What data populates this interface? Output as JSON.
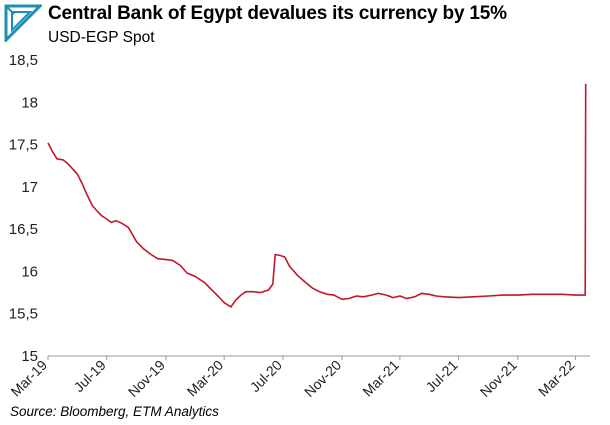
{
  "header": {
    "title": "Central Bank of Egypt devalues its currency by 15%",
    "subtitle": "USD-EGP Spot",
    "logo_icon": "triangle-logo-icon"
  },
  "source": "Source: Bloomberg, ETM Analytics",
  "chart_data": {
    "type": "line",
    "title": "Central Bank of Egypt devalues its currency by 15%",
    "subtitle": "USD-EGP Spot",
    "xlabel": "",
    "ylabel": "",
    "ylim": [
      15,
      18.5
    ],
    "yticks": [
      15,
      15.5,
      16,
      16.5,
      17,
      17.5,
      18,
      18.5
    ],
    "ytick_labels": [
      "15",
      "15,5",
      "16",
      "16,5",
      "17",
      "17,5",
      "18",
      "18,5"
    ],
    "xlim": [
      "2019-03-01",
      "2022-03-31"
    ],
    "xticks": [
      "2019-03-01",
      "2019-07-01",
      "2019-11-01",
      "2020-03-01",
      "2020-07-01",
      "2020-11-01",
      "2021-03-01",
      "2021-07-01",
      "2021-11-01",
      "2022-03-01"
    ],
    "xtick_labels": [
      "Mar-19",
      "Jul-19",
      "Nov-19",
      "Mar-20",
      "Jul-20",
      "Nov-20",
      "Mar-21",
      "Jul-21",
      "Nov-21",
      "Mar-22"
    ],
    "grid": false,
    "line_color": "#c0182a",
    "series": [
      {
        "x": [
          "2019-03-01",
          "2019-03-10",
          "2019-03-20",
          "2019-04-01",
          "2019-04-10",
          "2019-04-20",
          "2019-05-01",
          "2019-05-10",
          "2019-05-20",
          "2019-06-01",
          "2019-06-10",
          "2019-06-20",
          "2019-07-01",
          "2019-07-10",
          "2019-07-20",
          "2019-08-01",
          "2019-08-15",
          "2019-09-01",
          "2019-09-15",
          "2019-10-01",
          "2019-10-15",
          "2019-11-01",
          "2019-11-15",
          "2019-12-01",
          "2019-12-15",
          "2020-01-01",
          "2020-01-20",
          "2020-02-01",
          "2020-02-15",
          "2020-03-01",
          "2020-03-15",
          "2020-03-25",
          "2020-04-05",
          "2020-04-15",
          "2020-05-01",
          "2020-05-15",
          "2020-06-01",
          "2020-06-10",
          "2020-06-15",
          "2020-06-25",
          "2020-07-05",
          "2020-07-15",
          "2020-08-01",
          "2020-08-15",
          "2020-09-01",
          "2020-09-15",
          "2020-10-01",
          "2020-10-15",
          "2020-11-01",
          "2020-11-15",
          "2020-12-01",
          "2020-12-15",
          "2021-01-01",
          "2021-01-15",
          "2021-02-01",
          "2021-02-15",
          "2021-03-01",
          "2021-03-15",
          "2021-04-01",
          "2021-04-15",
          "2021-05-01",
          "2021-05-15",
          "2021-06-01",
          "2021-07-01",
          "2021-08-01",
          "2021-09-01",
          "2021-10-01",
          "2021-11-01",
          "2021-12-01",
          "2022-01-01",
          "2022-02-01",
          "2022-03-01",
          "2022-03-15",
          "2022-03-21",
          "2022-03-22"
        ],
        "y": [
          17.52,
          17.42,
          17.33,
          17.32,
          17.28,
          17.22,
          17.15,
          17.05,
          16.92,
          16.78,
          16.72,
          16.66,
          16.62,
          16.58,
          16.6,
          16.57,
          16.52,
          16.35,
          16.27,
          16.2,
          16.15,
          16.14,
          16.13,
          16.07,
          15.98,
          15.94,
          15.87,
          15.8,
          15.72,
          15.63,
          15.58,
          15.66,
          15.72,
          15.76,
          15.76,
          15.75,
          15.78,
          15.85,
          16.2,
          16.19,
          16.17,
          16.06,
          15.95,
          15.88,
          15.8,
          15.76,
          15.73,
          15.72,
          15.67,
          15.68,
          15.71,
          15.7,
          15.72,
          15.74,
          15.72,
          15.69,
          15.71,
          15.68,
          15.7,
          15.74,
          15.73,
          15.71,
          15.7,
          15.69,
          15.7,
          15.71,
          15.72,
          15.72,
          15.73,
          15.73,
          15.73,
          15.72,
          15.72,
          15.72,
          18.22
        ]
      }
    ]
  }
}
